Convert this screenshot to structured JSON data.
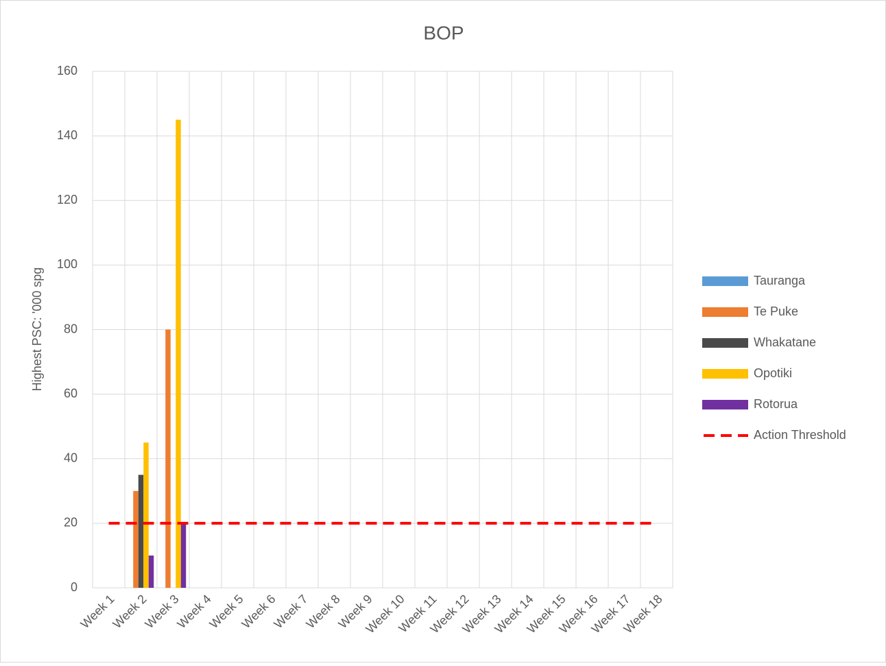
{
  "chart_data": {
    "type": "bar",
    "title": "BOP",
    "y_label": "Highest PSC: '000 spg",
    "categories": [
      "Week 1",
      "Week 2",
      "Week 3",
      "Week 4",
      "Week 5",
      "Week 6",
      "Week 7",
      "Week 8",
      "Week 9",
      "Week 10",
      "Week 11",
      "Week 12",
      "Week 13",
      "Week 14",
      "Week 15",
      "Week 16",
      "Week 17",
      "Week 18"
    ],
    "series": [
      {
        "name": "Tauranga",
        "color": "#5b9bd5",
        "type": "bar",
        "values": [
          null,
          null,
          null,
          null,
          null,
          null,
          null,
          null,
          null,
          null,
          null,
          null,
          null,
          null,
          null,
          null,
          null,
          null
        ]
      },
      {
        "name": "Te Puke",
        "color": "#ed7d31",
        "type": "bar",
        "values": [
          null,
          30,
          80,
          null,
          null,
          null,
          null,
          null,
          null,
          null,
          null,
          null,
          null,
          null,
          null,
          null,
          null,
          null
        ]
      },
      {
        "name": "Whakatane",
        "color": "#4a4a4a",
        "type": "bar",
        "values": [
          null,
          35,
          null,
          null,
          null,
          null,
          null,
          null,
          null,
          null,
          null,
          null,
          null,
          null,
          null,
          null,
          null,
          null
        ]
      },
      {
        "name": "Opotiki",
        "color": "#ffc000",
        "type": "bar",
        "values": [
          null,
          45,
          145,
          null,
          null,
          null,
          null,
          null,
          null,
          null,
          null,
          null,
          null,
          null,
          null,
          null,
          null,
          null
        ]
      },
      {
        "name": "Rotorua",
        "color": "#7030a0",
        "type": "bar",
        "values": [
          null,
          10,
          20,
          null,
          null,
          null,
          null,
          null,
          null,
          null,
          null,
          null,
          null,
          null,
          null,
          null,
          null,
          null
        ]
      },
      {
        "name": "Action Threshold",
        "color": "#ff0000",
        "type": "line",
        "dashed": true,
        "values": [
          20,
          20,
          20,
          20,
          20,
          20,
          20,
          20,
          20,
          20,
          20,
          20,
          20,
          20,
          20,
          20,
          20,
          20
        ]
      }
    ],
    "ylim": [
      0,
      160
    ],
    "yticks": [
      0,
      20,
      40,
      60,
      80,
      100,
      120,
      140,
      160
    ],
    "grid": true,
    "legend": "right"
  }
}
